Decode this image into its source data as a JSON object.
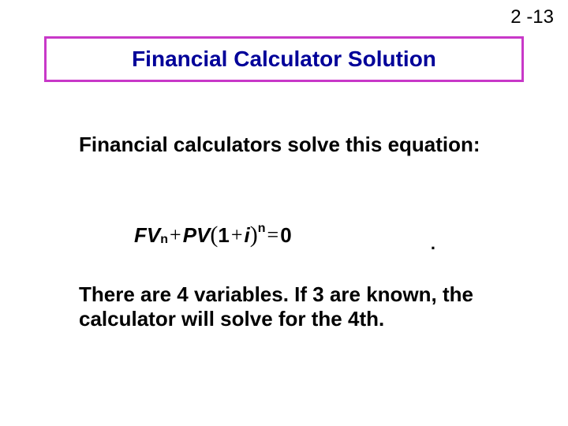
{
  "page": {
    "number": "2 -13",
    "background_color": "#ffffff"
  },
  "title": {
    "text": "Financial Calculator Solution",
    "text_color": "#000099",
    "border_color": "#c838c8",
    "border_width": 3,
    "font_size": 28,
    "font_weight": "bold"
  },
  "body1": {
    "text": "Financial calculators solve this equation:",
    "font_size": 26,
    "font_weight": "bold",
    "color": "#000000"
  },
  "equation": {
    "fv": "FV",
    "sub_n1": "n",
    "plus1": "+",
    "pv": "PV",
    "lparen": "(",
    "one": "1",
    "plus2": "+",
    "ivar": "i",
    "rparen": ")",
    "sup_n": "n",
    "eq": "=",
    "zero": "0",
    "dot": "."
  },
  "body2": {
    "text": "There are 4 variables.  If 3 are known, the calculator will solve for the 4th.",
    "font_size": 26,
    "font_weight": "bold",
    "color": "#000000"
  }
}
